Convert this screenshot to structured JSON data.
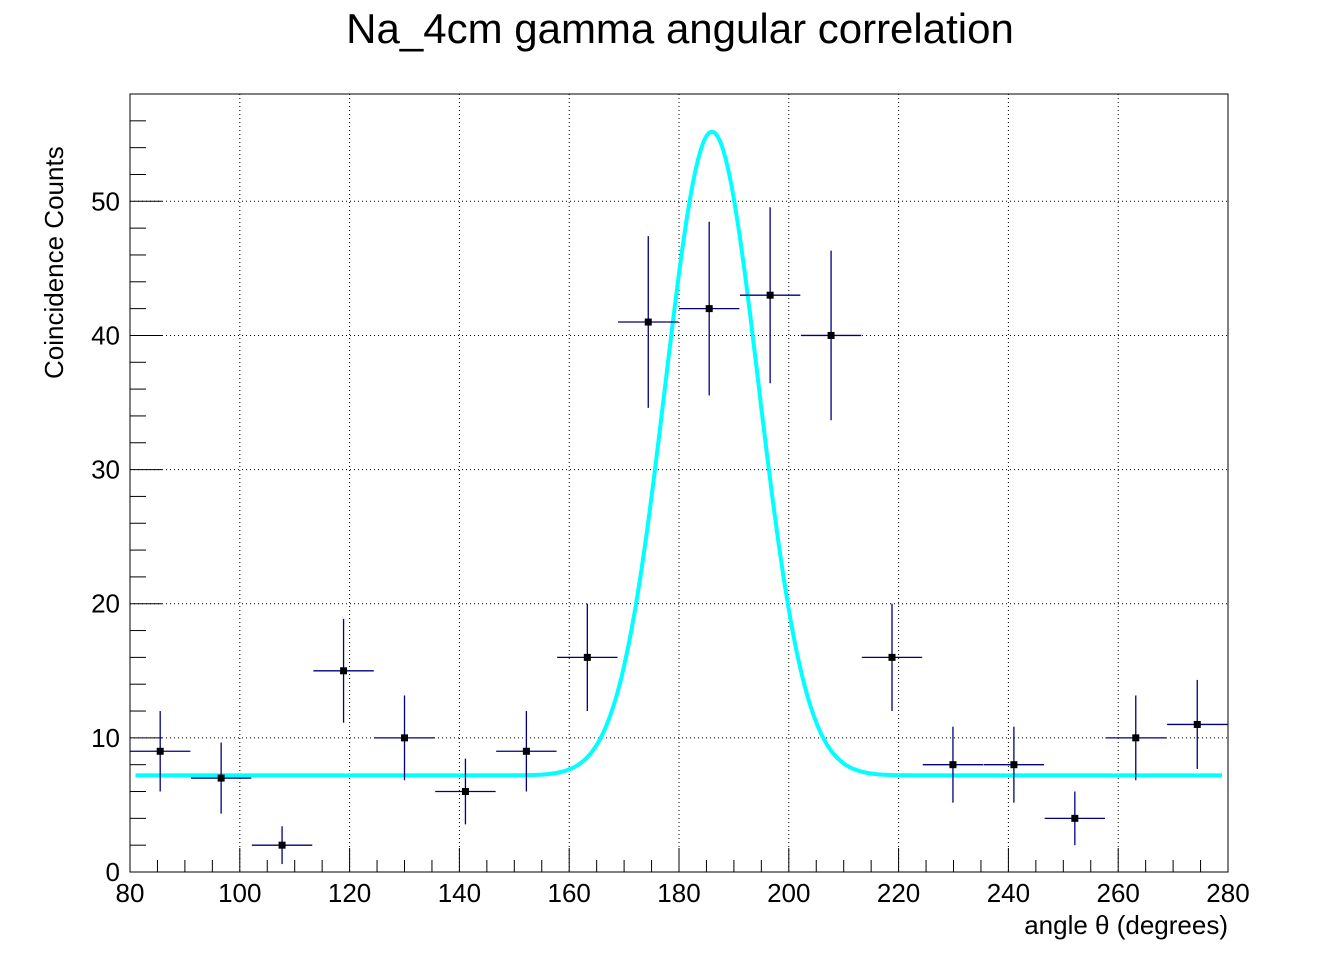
{
  "chart_data": {
    "type": "scatter",
    "title": "Na_4cm gamma angular correlation",
    "xlabel": "angle θ (degrees)",
    "ylabel": "Coincidence Counts",
    "xlim": [
      80,
      280
    ],
    "ylim": [
      0,
      58
    ],
    "grid": true,
    "xticks": [
      "80",
      "100",
      "120",
      "140",
      "160",
      "180",
      "200",
      "220",
      "240",
      "260",
      "280"
    ],
    "yticks": [
      "0",
      "10",
      "20",
      "30",
      "40",
      "50"
    ],
    "series": [
      {
        "kind": "points-with-errors",
        "color": "#000080",
        "points": [
          {
            "x": 85.5,
            "xerr": 5.5,
            "y": 9,
            "yerr": 3.0
          },
          {
            "x": 96.6,
            "xerr": 5.5,
            "y": 7,
            "yerr": 2.65
          },
          {
            "x": 107.7,
            "xerr": 5.5,
            "y": 2,
            "yerr": 1.41
          },
          {
            "x": 118.9,
            "xerr": 5.5,
            "y": 15,
            "yerr": 3.87
          },
          {
            "x": 130.0,
            "xerr": 5.5,
            "y": 10,
            "yerr": 3.16
          },
          {
            "x": 141.1,
            "xerr": 5.5,
            "y": 6,
            "yerr": 2.45
          },
          {
            "x": 152.2,
            "xerr": 5.5,
            "y": 9,
            "yerr": 3.0
          },
          {
            "x": 163.3,
            "xerr": 5.5,
            "y": 16,
            "yerr": 4.0
          },
          {
            "x": 174.4,
            "xerr": 5.5,
            "y": 41,
            "yerr": 6.4
          },
          {
            "x": 185.5,
            "xerr": 5.5,
            "y": 42,
            "yerr": 6.48
          },
          {
            "x": 196.6,
            "xerr": 5.5,
            "y": 43,
            "yerr": 6.56
          },
          {
            "x": 207.7,
            "xerr": 5.5,
            "y": 40,
            "yerr": 6.32
          },
          {
            "x": 218.8,
            "xerr": 5.5,
            "y": 16,
            "yerr": 4.0
          },
          {
            "x": 229.9,
            "xerr": 5.5,
            "y": 8,
            "yerr": 2.83
          },
          {
            "x": 241.0,
            "xerr": 5.5,
            "y": 8,
            "yerr": 2.83
          },
          {
            "x": 252.1,
            "xerr": 5.5,
            "y": 4,
            "yerr": 2.0
          },
          {
            "x": 263.2,
            "xerr": 5.5,
            "y": 10,
            "yerr": 3.16
          },
          {
            "x": 274.4,
            "xerr": 5.5,
            "y": 11,
            "yerr": 3.32
          }
        ]
      },
      {
        "kind": "fit-curve",
        "model": "gaussian-plus-constant",
        "color": "#00ffff",
        "constant": 7.2,
        "amplitude": 48.0,
        "mean": 186.0,
        "sigma": 8.5,
        "x_range": [
          81,
          281
        ]
      }
    ]
  }
}
